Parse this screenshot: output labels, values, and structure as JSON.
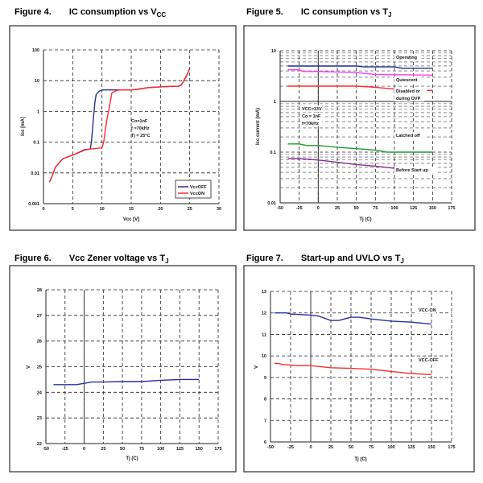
{
  "chart_data": [
    {
      "type": "line",
      "figure_label": "Figure 4.",
      "title": "IC consumption vs V",
      "title_sub": "CC",
      "xlabel": "Vcc [V]",
      "ylabel": "Icc [mA]",
      "xscale": "linear",
      "yscale": "log",
      "xlim": [
        0,
        30
      ],
      "ylim": [
        0.001,
        100
      ],
      "xticks": [
        0,
        5,
        10,
        15,
        20,
        25,
        30
      ],
      "xtick_labels": [
        "0",
        "5",
        "10",
        "15",
        "20",
        "25",
        "30"
      ],
      "yticks": [
        0.001,
        0.01,
        0.1,
        1,
        10,
        100
      ],
      "ytick_labels": [
        "0.001",
        "0.01",
        "0.1",
        "1",
        "10",
        "100"
      ],
      "grid": true,
      "legend": {
        "placement": "bottom-right",
        "entries": [
          "VccOFF",
          "VccON"
        ]
      },
      "annotations": [
        "Co=1nF",
        "f =70kHz",
        "Tj = 25°C"
      ],
      "series": [
        {
          "name": "VccOFF",
          "color": "#2b2f8f",
          "x": [
            1,
            1.5,
            2,
            3,
            3.5,
            5,
            7,
            8,
            8.2,
            8.5,
            8.8,
            9,
            9.5,
            10,
            12,
            15,
            16,
            18,
            20,
            22,
            23,
            23.5,
            24,
            24.5,
            25
          ],
          "y": [
            0.005,
            0.008,
            0.015,
            0.025,
            0.03,
            0.038,
            0.055,
            0.06,
            0.1,
            0.5,
            2,
            3.5,
            4.5,
            5,
            5,
            5,
            5.2,
            6,
            6.3,
            6.5,
            6.5,
            7,
            10,
            15,
            25
          ]
        },
        {
          "name": "VccON",
          "color": "#ff2a2a",
          "x": [
            1,
            1.5,
            2,
            3,
            3.5,
            5,
            7,
            8,
            10,
            10.3,
            10.8,
            11.3,
            11.7,
            12.5,
            13,
            15,
            16,
            18,
            20,
            22,
            23,
            23.5,
            24,
            24.5,
            25
          ],
          "y": [
            0.005,
            0.008,
            0.015,
            0.025,
            0.03,
            0.038,
            0.057,
            0.06,
            0.065,
            0.1,
            0.5,
            1.5,
            4,
            4.8,
            5,
            5,
            5.2,
            6,
            6.3,
            6.6,
            6.5,
            7,
            10,
            15,
            25
          ]
        }
      ]
    },
    {
      "type": "line",
      "figure_label": "Figure 5.",
      "title": "IC consumption vs T",
      "title_sub": "J",
      "xlabel": "Tj (C)",
      "ylabel": "Icc current (mA)",
      "xscale": "linear",
      "yscale": "log",
      "xlim": [
        -50,
        175
      ],
      "ylim": [
        0.01,
        10
      ],
      "xticks": [
        -50,
        -25,
        0,
        25,
        50,
        75,
        100,
        125,
        150,
        175
      ],
      "xtick_labels": [
        "-50",
        "-25",
        "0",
        "25",
        "50",
        "75",
        "100",
        "125",
        "150",
        "175"
      ],
      "yticks": [
        0.01,
        0.1,
        1,
        10
      ],
      "ytick_labels": [
        "0.01",
        "0.1",
        "1",
        "10"
      ],
      "grid": true,
      "annotations": [
        "VCC=13V",
        "Co = 1nF",
        "f=70kHz"
      ],
      "series": [
        {
          "name": "Operating",
          "label": [
            "Operating"
          ],
          "color": "#1f2f8f",
          "x": [
            -40,
            50,
            60,
            100,
            110,
            150
          ],
          "y": [
            5,
            5,
            4.8,
            4.8,
            4.5,
            4.5
          ]
        },
        {
          "name": "Quiescent",
          "label": [
            "Quiescent"
          ],
          "color": "#ff3cff",
          "x": [
            -40,
            -25,
            -20,
            0,
            50,
            75,
            150
          ],
          "y": [
            4.2,
            4.2,
            3.9,
            3.9,
            3.7,
            3.4,
            3.3
          ]
        },
        {
          "name": "Disabled or during OVP",
          "label": [
            "Disabled or",
            "during OVP"
          ],
          "color": "#ff2a2a",
          "x": [
            -40,
            50,
            75,
            100,
            125,
            150
          ],
          "y": [
            2,
            2,
            1.9,
            1.75,
            1.65,
            1.65
          ]
        },
        {
          "name": "Latched off",
          "label": [
            "Latched off"
          ],
          "color": "#1f9a2a",
          "x": [
            -40,
            -25,
            -15,
            0,
            25,
            75,
            90,
            150
          ],
          "y": [
            0.145,
            0.145,
            0.135,
            0.135,
            0.125,
            0.11,
            0.1,
            0.1
          ]
        },
        {
          "name": "Before Start up",
          "label": [
            "Before Start up"
          ],
          "color": "#8a2a9a",
          "x": [
            -40,
            -25,
            0,
            25,
            50,
            75,
            100
          ],
          "y": [
            0.075,
            0.075,
            0.07,
            0.063,
            0.057,
            0.053,
            0.048
          ]
        }
      ]
    },
    {
      "type": "line",
      "figure_label": "Figure 6.",
      "title": "Vcc Zener voltage vs T",
      "title_sub": "J",
      "xlabel": "Tj (C)",
      "ylabel": "V",
      "xscale": "linear",
      "yscale": "linear",
      "xlim": [
        -50,
        175
      ],
      "ylim": [
        22,
        28
      ],
      "xticks": [
        -50,
        -25,
        0,
        25,
        50,
        75,
        100,
        125,
        150,
        175
      ],
      "xtick_labels": [
        "-50",
        "-25",
        "0",
        "25",
        "50",
        "75",
        "100",
        "125",
        "150",
        "175"
      ],
      "yticks": [
        22,
        23,
        24,
        25,
        26,
        27,
        28
      ],
      "ytick_labels": [
        "22",
        "23",
        "24",
        "25",
        "26",
        "27",
        "28"
      ],
      "grid": true,
      "series": [
        {
          "name": "Vcc Zener",
          "color": "#2b2f9f",
          "x": [
            -40,
            -10,
            0,
            10,
            25,
            50,
            75,
            100,
            125,
            150
          ],
          "y": [
            24.3,
            24.3,
            24.35,
            24.4,
            24.4,
            24.42,
            24.42,
            24.47,
            24.5,
            24.5
          ]
        }
      ]
    },
    {
      "type": "line",
      "figure_label": "Figure 7.",
      "title": "Start-up and UVLO vs T",
      "title_sub": "J",
      "xlabel": "Tj (C)",
      "ylabel": "V",
      "xscale": "linear",
      "yscale": "linear",
      "xlim": [
        -50,
        175
      ],
      "ylim": [
        6,
        13
      ],
      "xticks": [
        -50,
        -25,
        0,
        25,
        50,
        75,
        100,
        125,
        150,
        175
      ],
      "xtick_labels": [
        "-50",
        "-25",
        "0",
        "25",
        "50",
        "75",
        "100",
        "125",
        "150",
        "175"
      ],
      "yticks": [
        6,
        7,
        8,
        9,
        10,
        11,
        12,
        13
      ],
      "ytick_labels": [
        "6",
        "7",
        "8",
        "9",
        "10",
        "11",
        "12",
        "13"
      ],
      "grid": true,
      "series": [
        {
          "name": "VCC-ON",
          "label": [
            "VCC-ON"
          ],
          "color": "#2b2f9f",
          "x": [
            -45,
            -30,
            -25,
            0,
            10,
            25,
            35,
            50,
            60,
            75,
            100,
            125,
            150
          ],
          "y": [
            12,
            12,
            11.95,
            11.9,
            11.85,
            11.65,
            11.65,
            11.8,
            11.8,
            11.72,
            11.62,
            11.57,
            11.48
          ]
        },
        {
          "name": "VCC-OFF",
          "label": [
            "VCC-OFF"
          ],
          "color": "#ff2a2a",
          "x": [
            -45,
            -40,
            -35,
            -25,
            -20,
            0,
            25,
            50,
            75,
            100,
            125,
            150
          ],
          "y": [
            9.65,
            9.65,
            9.6,
            9.58,
            9.55,
            9.55,
            9.45,
            9.42,
            9.38,
            9.28,
            9.18,
            9.13
          ]
        }
      ]
    }
  ]
}
